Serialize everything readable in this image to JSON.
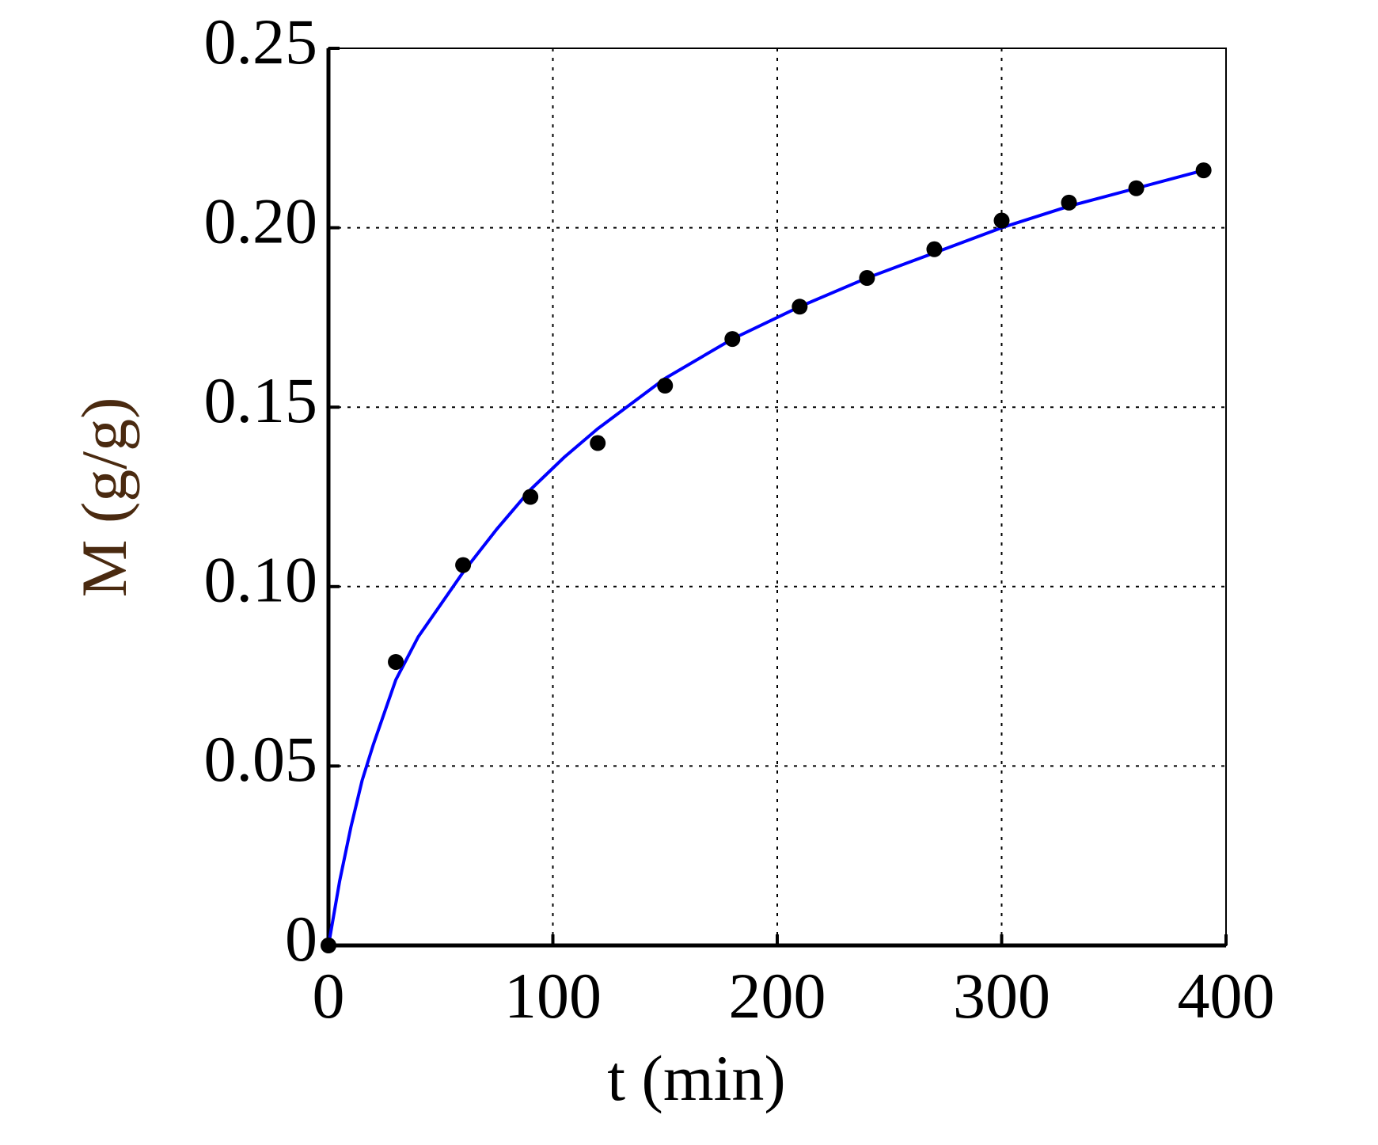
{
  "chart_data": {
    "type": "scatter",
    "xlabel": "t (min)",
    "ylabel": "M (g/g)",
    "xlim": [
      0,
      400
    ],
    "xticks": [
      0,
      100,
      200,
      300,
      400
    ],
    "ylim": [
      0,
      0.25
    ],
    "yticks": [
      0,
      0.05,
      {
        "value": 0.1,
        "label": "0.10"
      },
      0.15,
      {
        "value": 0.2,
        "label": "0.20"
      },
      0.25
    ],
    "grid": true,
    "series": [
      {
        "type": "scatter",
        "color": "#000000",
        "x": [
          0,
          30,
          60,
          90,
          120,
          150,
          180,
          210,
          240,
          270,
          300,
          330,
          360,
          390
        ],
        "values": [
          0,
          0.079,
          0.106,
          0.125,
          0.14,
          0.156,
          0.169,
          0.178,
          0.186,
          0.194,
          0.202,
          0.207,
          0.211,
          0.216
        ]
      },
      {
        "type": "line",
        "color": "#0000ff",
        "x": [
          0,
          5,
          10,
          15,
          20,
          30,
          40,
          50,
          60,
          75,
          90,
          105,
          120,
          150,
          180,
          210,
          240,
          270,
          300,
          330,
          360,
          390
        ],
        "values": [
          0,
          0.018,
          0.033,
          0.046,
          0.056,
          0.074,
          0.086,
          0.095,
          0.104,
          0.116,
          0.127,
          0.136,
          0.144,
          0.158,
          0.169,
          0.178,
          0.186,
          0.193,
          0.2,
          0.206,
          0.211,
          0.216
        ]
      }
    ]
  }
}
